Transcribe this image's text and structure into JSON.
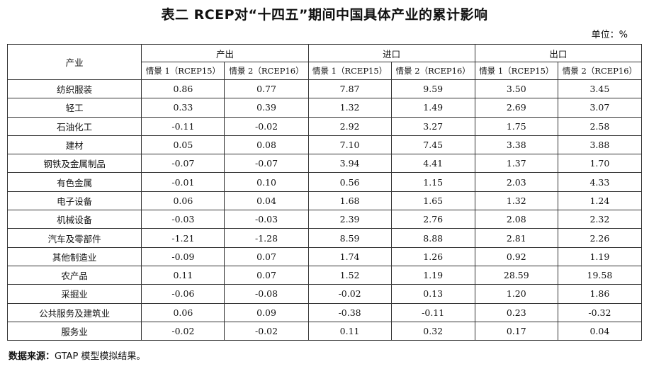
{
  "title": "表二 RCEP对“十四五”期间中国具体产业的累计影响",
  "unit": "单位：%",
  "table": {
    "industry_header": "产业",
    "groups": [
      "产出",
      "进口",
      "出口"
    ],
    "subheaders": [
      "情景 1（RCEP15）",
      "情景 2（RCEP16）",
      "情景 1（RCEP15）",
      "情景 2（RCEP16）",
      "情景 1（RCEP15）",
      "情景 2（RCEP16）"
    ],
    "rows": [
      {
        "industry": "纺织服装",
        "values": [
          "0.86",
          "0.77",
          "7.87",
          "9.59",
          "3.50",
          "3.45"
        ]
      },
      {
        "industry": "轻工",
        "values": [
          "0.33",
          "0.39",
          "1.32",
          "1.49",
          "2.69",
          "3.07"
        ]
      },
      {
        "industry": "石油化工",
        "values": [
          "-0.11",
          "-0.02",
          "2.92",
          "3.27",
          "1.75",
          "2.58"
        ]
      },
      {
        "industry": "建材",
        "values": [
          "0.05",
          "0.08",
          "7.10",
          "7.45",
          "3.38",
          "3.88"
        ]
      },
      {
        "industry": "钢铁及金属制品",
        "values": [
          "-0.07",
          "-0.07",
          "3.94",
          "4.41",
          "1.37",
          "1.70"
        ]
      },
      {
        "industry": "有色金属",
        "values": [
          "-0.01",
          "0.10",
          "0.56",
          "1.15",
          "2.03",
          "4.33"
        ]
      },
      {
        "industry": "电子设备",
        "values": [
          "0.06",
          "0.04",
          "1.68",
          "1.65",
          "1.32",
          "1.24"
        ]
      },
      {
        "industry": "机械设备",
        "values": [
          "-0.03",
          "-0.03",
          "2.39",
          "2.76",
          "2.08",
          "2.32"
        ]
      },
      {
        "industry": "汽车及零部件",
        "values": [
          "-1.21",
          "-1.28",
          "8.59",
          "8.88",
          "2.81",
          "2.26"
        ]
      },
      {
        "industry": "其他制造业",
        "values": [
          "-0.09",
          "0.07",
          "1.74",
          "1.26",
          "0.92",
          "1.19"
        ]
      },
      {
        "industry": "农产品",
        "values": [
          "0.11",
          "0.07",
          "1.52",
          "1.19",
          "28.59",
          "19.58"
        ]
      },
      {
        "industry": "采掘业",
        "values": [
          "-0.06",
          "-0.08",
          "-0.02",
          "0.13",
          "1.20",
          "1.86"
        ]
      },
      {
        "industry": "公共服务及建筑业",
        "values": [
          "0.06",
          "0.09",
          "-0.38",
          "-0.11",
          "0.23",
          "-0.32"
        ]
      },
      {
        "industry": "服务业",
        "values": [
          "-0.02",
          "-0.02",
          "0.11",
          "0.32",
          "0.17",
          "0.04"
        ]
      }
    ]
  },
  "source": {
    "label": "数据来源：",
    "text": "GTAP 模型模拟结果。"
  }
}
